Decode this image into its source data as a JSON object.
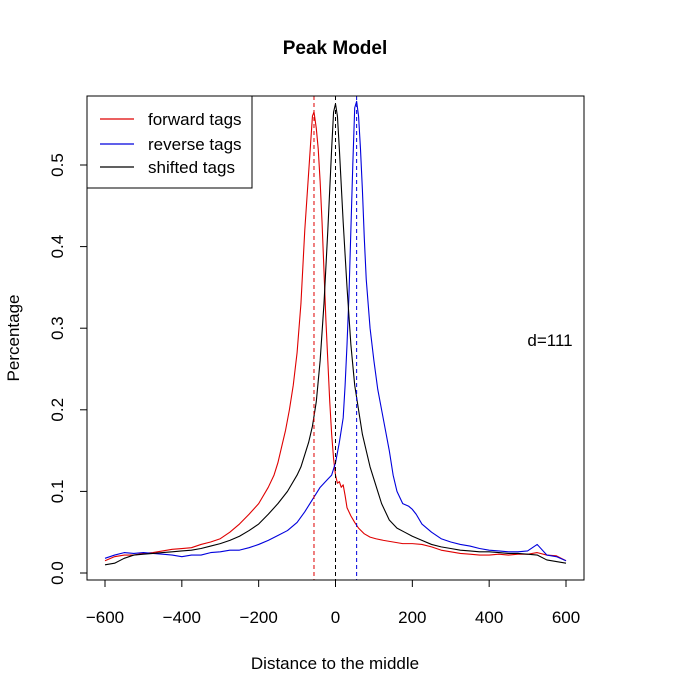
{
  "chart_data": {
    "type": "line",
    "title": "Peak Model",
    "xlabel": "Distance to the middle",
    "ylabel": "Percentage",
    "xlim": [
      -620,
      620
    ],
    "ylim": [
      -0.008,
      0.58
    ],
    "x_ticks": [
      -600,
      -400,
      -200,
      0,
      200,
      400,
      600
    ],
    "x_tick_labels": [
      "−600",
      "−400",
      "−200",
      "0",
      "200",
      "400",
      "600"
    ],
    "y_ticks": [
      0.0,
      0.1,
      0.2,
      0.3,
      0.4,
      0.5
    ],
    "y_tick_labels": [
      "0.0",
      "0.1",
      "0.2",
      "0.3",
      "0.4",
      "0.5"
    ],
    "grid": false,
    "legend_position": "top-left",
    "annotation": "d=111",
    "series": [
      {
        "name": "forward tags",
        "color": "#DF0000",
        "x": [
          -600,
          -575,
          -550,
          -525,
          -500,
          -475,
          -450,
          -425,
          -400,
          -375,
          -350,
          -325,
          -300,
          -275,
          -250,
          -225,
          -200,
          -175,
          -160,
          -150,
          -140,
          -130,
          -120,
          -110,
          -100,
          -90,
          -80,
          -70,
          -60,
          -56,
          -50,
          -45,
          -40,
          -35,
          -30,
          -25,
          -20,
          -15,
          -10,
          -5,
          0,
          5,
          10,
          15,
          20,
          25,
          30,
          40,
          50,
          60,
          75,
          90,
          105,
          125,
          150,
          175,
          200,
          225,
          250,
          275,
          300,
          325,
          350,
          375,
          400,
          425,
          450,
          475,
          500,
          525,
          550,
          575,
          600
        ],
        "y": [
          0.015,
          0.02,
          0.022,
          0.022,
          0.024,
          0.025,
          0.027,
          0.029,
          0.03,
          0.031,
          0.035,
          0.038,
          0.042,
          0.05,
          0.06,
          0.072,
          0.085,
          0.105,
          0.12,
          0.135,
          0.155,
          0.175,
          0.2,
          0.23,
          0.27,
          0.33,
          0.42,
          0.49,
          0.56,
          0.565,
          0.545,
          0.52,
          0.48,
          0.43,
          0.37,
          0.31,
          0.26,
          0.21,
          0.17,
          0.14,
          0.12,
          0.11,
          0.112,
          0.105,
          0.108,
          0.095,
          0.08,
          0.07,
          0.062,
          0.055,
          0.048,
          0.044,
          0.042,
          0.04,
          0.038,
          0.036,
          0.036,
          0.035,
          0.032,
          0.028,
          0.026,
          0.024,
          0.023,
          0.022,
          0.022,
          0.023,
          0.022,
          0.023,
          0.023,
          0.025,
          0.022,
          0.021,
          0.015
        ]
      },
      {
        "name": "reverse tags",
        "color": "#0000DD",
        "x": [
          -600,
          -575,
          -550,
          -525,
          -500,
          -475,
          -450,
          -425,
          -400,
          -375,
          -350,
          -325,
          -300,
          -275,
          -250,
          -225,
          -200,
          -175,
          -150,
          -125,
          -100,
          -80,
          -60,
          -40,
          -20,
          -10,
          0,
          10,
          20,
          25,
          30,
          35,
          40,
          45,
          50,
          55,
          60,
          65,
          70,
          75,
          80,
          90,
          100,
          110,
          120,
          130,
          140,
          150,
          160,
          175,
          190,
          200,
          210,
          225,
          250,
          275,
          300,
          325,
          350,
          375,
          400,
          425,
          450,
          475,
          500,
          525,
          550,
          575,
          600
        ],
        "y": [
          0.018,
          0.022,
          0.025,
          0.024,
          0.025,
          0.024,
          0.023,
          0.022,
          0.02,
          0.022,
          0.022,
          0.025,
          0.026,
          0.028,
          0.028,
          0.031,
          0.035,
          0.04,
          0.046,
          0.052,
          0.062,
          0.075,
          0.09,
          0.105,
          0.115,
          0.12,
          0.135,
          0.16,
          0.19,
          0.23,
          0.28,
          0.34,
          0.42,
          0.5,
          0.57,
          0.578,
          0.56,
          0.52,
          0.47,
          0.41,
          0.36,
          0.3,
          0.26,
          0.225,
          0.2,
          0.175,
          0.15,
          0.12,
          0.1,
          0.085,
          0.082,
          0.078,
          0.072,
          0.06,
          0.05,
          0.042,
          0.038,
          0.035,
          0.033,
          0.03,
          0.028,
          0.027,
          0.026,
          0.026,
          0.027,
          0.035,
          0.022,
          0.02,
          0.015
        ]
      },
      {
        "name": "shifted tags",
        "color": "#000000",
        "x": [
          -600,
          -575,
          -550,
          -525,
          -500,
          -475,
          -450,
          -425,
          -400,
          -375,
          -350,
          -325,
          -300,
          -275,
          -250,
          -225,
          -200,
          -175,
          -150,
          -125,
          -100,
          -90,
          -80,
          -70,
          -60,
          -50,
          -40,
          -30,
          -20,
          -10,
          -5,
          0,
          5,
          10,
          20,
          30,
          40,
          50,
          60,
          70,
          80,
          90,
          100,
          110,
          120,
          140,
          160,
          180,
          200,
          225,
          250,
          275,
          300,
          325,
          350,
          375,
          400,
          425,
          450,
          475,
          500,
          525,
          550,
          575,
          600
        ],
        "y": [
          0.01,
          0.012,
          0.018,
          0.022,
          0.023,
          0.024,
          0.025,
          0.026,
          0.027,
          0.028,
          0.03,
          0.033,
          0.036,
          0.04,
          0.045,
          0.052,
          0.06,
          0.072,
          0.085,
          0.1,
          0.12,
          0.13,
          0.145,
          0.16,
          0.18,
          0.21,
          0.26,
          0.33,
          0.42,
          0.52,
          0.565,
          0.575,
          0.56,
          0.52,
          0.43,
          0.35,
          0.28,
          0.23,
          0.2,
          0.17,
          0.15,
          0.13,
          0.115,
          0.1,
          0.085,
          0.065,
          0.055,
          0.05,
          0.045,
          0.04,
          0.035,
          0.032,
          0.03,
          0.028,
          0.027,
          0.026,
          0.026,
          0.025,
          0.024,
          0.024,
          0.023,
          0.022,
          0.016,
          0.014,
          0.012
        ]
      }
    ],
    "vlines": [
      {
        "x": -56,
        "color": "#DF0000"
      },
      {
        "x": 0,
        "color": "#000000"
      },
      {
        "x": 55,
        "color": "#0000DD"
      }
    ]
  }
}
